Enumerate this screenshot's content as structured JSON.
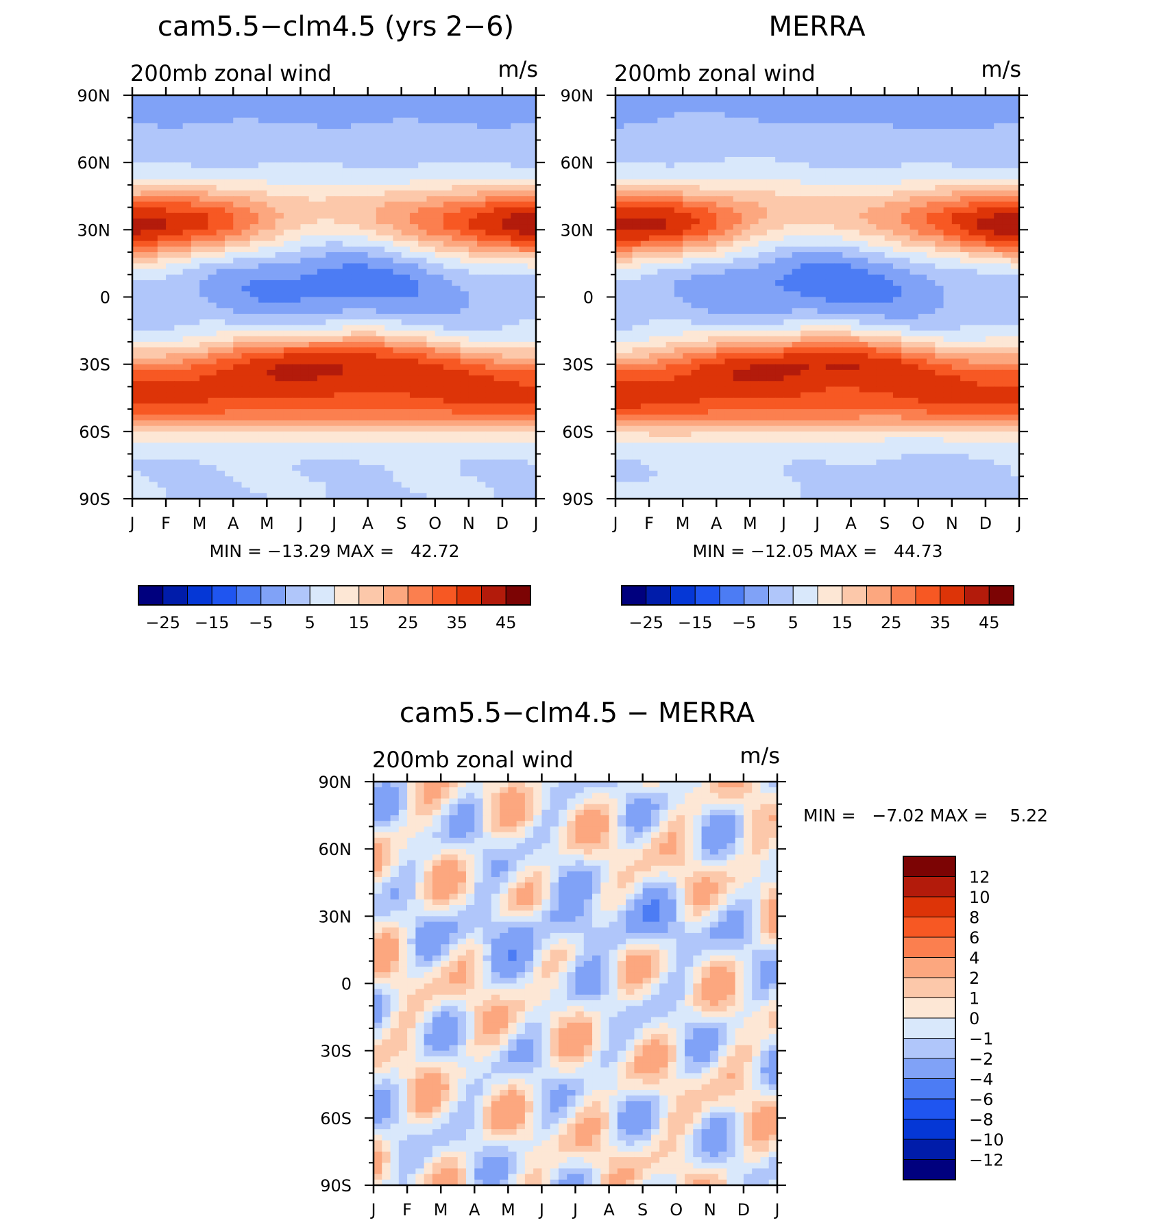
{
  "figure": {
    "months": [
      "J",
      "F",
      "M",
      "A",
      "M",
      "J",
      "J",
      "A",
      "S",
      "O",
      "N",
      "D",
      "J"
    ],
    "lat_labels": [
      "90N",
      "60N",
      "30N",
      "0",
      "30S",
      "60S",
      "90S"
    ]
  },
  "chart_data": [
    {
      "type": "heatmap",
      "title": "cam5.5−clm4.5 (yrs 2−6)",
      "subtitle_left": "200mb zonal wind",
      "subtitle_right": "m/s",
      "x_axis": "month",
      "y_axis": "latitude",
      "ylim": [
        -90,
        90
      ],
      "stats_text": "MIN = −13.29 MAX =   42.72",
      "min": -13.29,
      "max": 42.72,
      "colorbar": {
        "orientation": "horizontal",
        "tick_labels": [
          "−25",
          "−15",
          "−5",
          "5",
          "15",
          "25",
          "35",
          "45"
        ],
        "colors": [
          "#00007e",
          "#001caa",
          "#0537d6",
          "#1f55f0",
          "#4c7cf4",
          "#80a2f7",
          "#b0c6fa",
          "#d9e8fb",
          "#fde7d5",
          "#fcc8aa",
          "#fca77f",
          "#fb7f4f",
          "#f75823",
          "#dd3408",
          "#b31b0b",
          "#7c0404"
        ]
      }
    },
    {
      "type": "heatmap",
      "title": "MERRA",
      "subtitle_left": "200mb zonal wind",
      "subtitle_right": "m/s",
      "x_axis": "month",
      "y_axis": "latitude",
      "ylim": [
        -90,
        90
      ],
      "stats_text": "MIN = −12.05 MAX =   44.73",
      "min": -12.05,
      "max": 44.73,
      "colorbar": {
        "orientation": "horizontal",
        "tick_labels": [
          "−25",
          "−15",
          "−5",
          "5",
          "15",
          "25",
          "35",
          "45"
        ],
        "colors": [
          "#00007e",
          "#001caa",
          "#0537d6",
          "#1f55f0",
          "#4c7cf4",
          "#80a2f7",
          "#b0c6fa",
          "#d9e8fb",
          "#fde7d5",
          "#fcc8aa",
          "#fca77f",
          "#fb7f4f",
          "#f75823",
          "#dd3408",
          "#b31b0b",
          "#7c0404"
        ]
      }
    },
    {
      "type": "heatmap",
      "title": "cam5.5−clm4.5 − MERRA",
      "subtitle_left": "200mb zonal wind",
      "subtitle_right": "m/s",
      "x_axis": "month",
      "y_axis": "latitude",
      "ylim": [
        -90,
        90
      ],
      "stats_text": "MIN =   −7.02 MAX =    5.22",
      "min": -7.02,
      "max": 5.22,
      "colorbar": {
        "orientation": "vertical",
        "tick_labels": [
          "12",
          "10",
          "8",
          "6",
          "4",
          "2",
          "1",
          "0",
          "−1",
          "−2",
          "−4",
          "−6",
          "−8",
          "−10",
          "−12"
        ],
        "colors": [
          "#7c0404",
          "#b31b0b",
          "#dd3408",
          "#f75823",
          "#fb7f4f",
          "#fca77f",
          "#fcc8aa",
          "#fde7d5",
          "#d9e8fb",
          "#b0c6fa",
          "#80a2f7",
          "#4c7cf4",
          "#1f55f0",
          "#0537d6",
          "#001caa",
          "#00007e"
        ]
      }
    }
  ]
}
